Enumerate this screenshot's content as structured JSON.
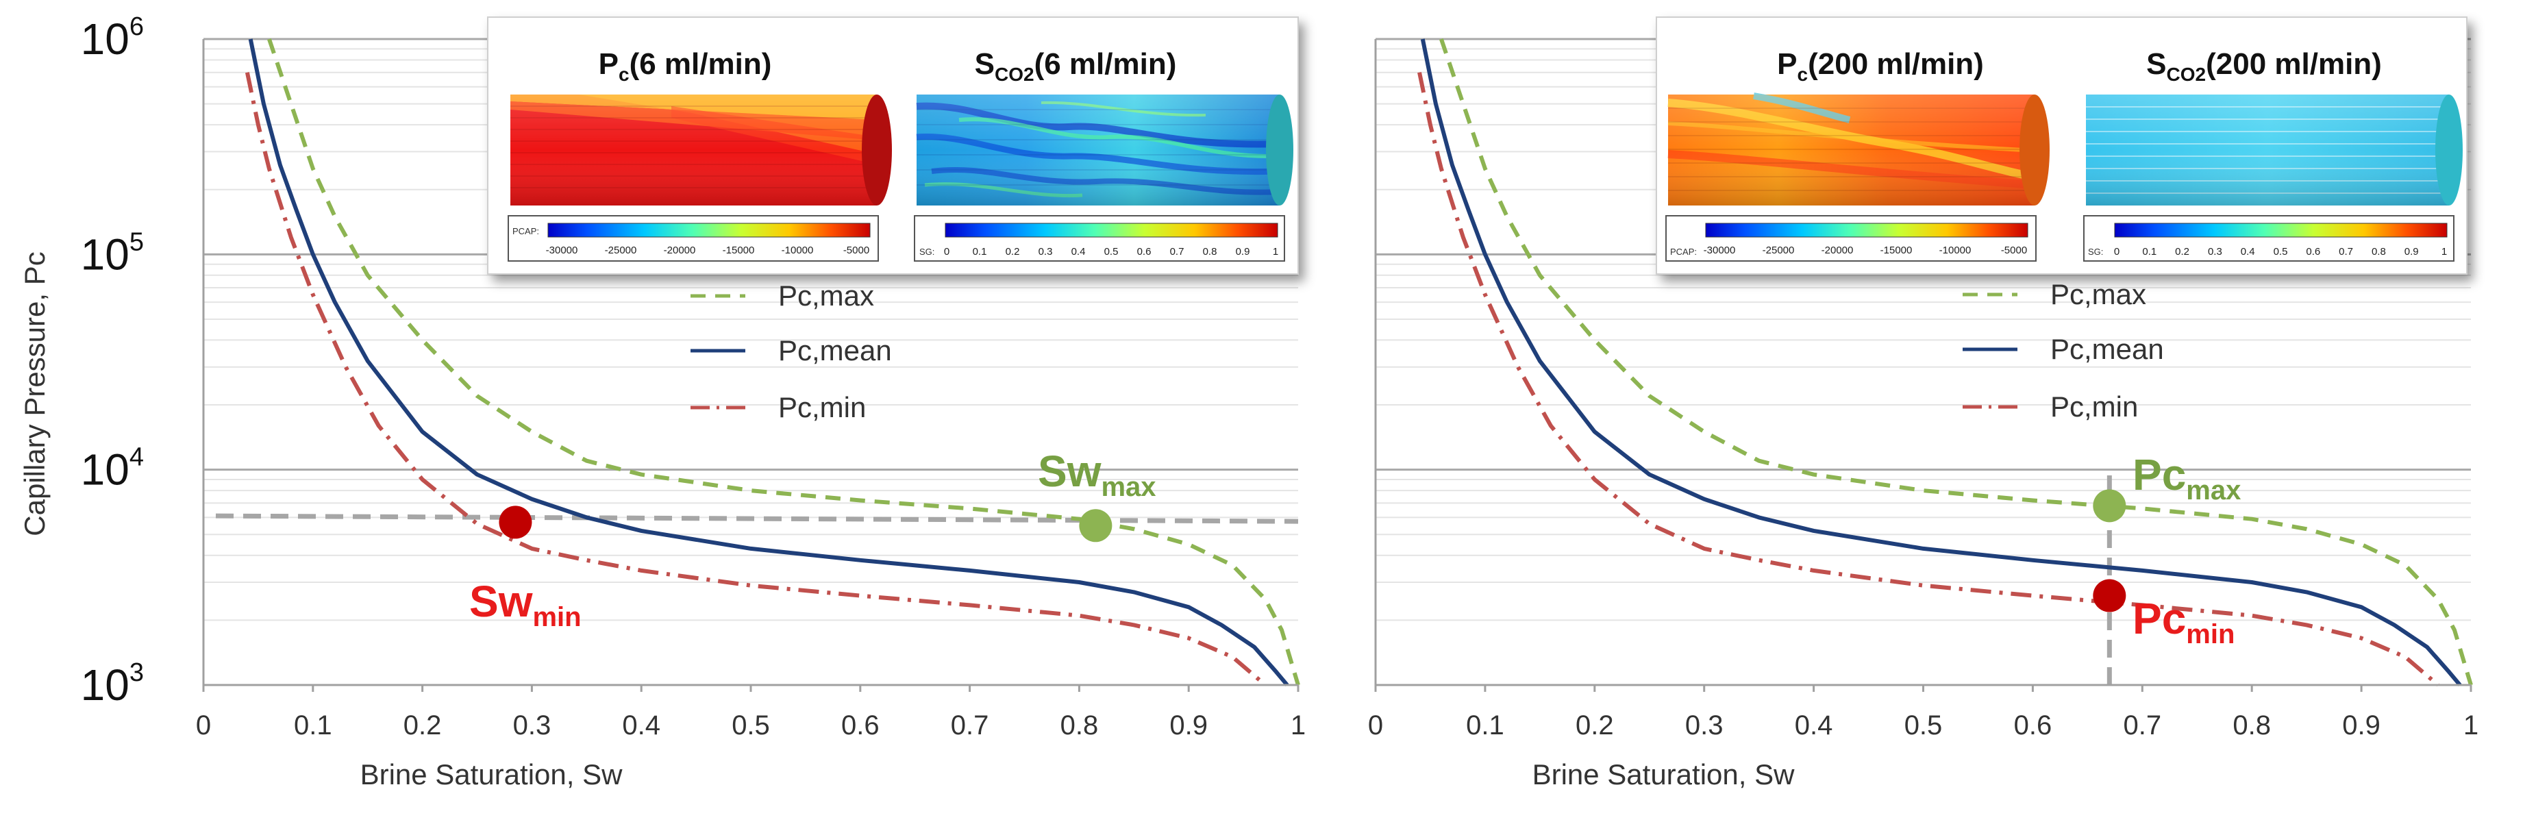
{
  "figure": {
    "description": "Capillary pressure vs brine saturation, two panels"
  },
  "chart_data": [
    {
      "type": "line",
      "panel": "left",
      "xlabel": "Brine Saturation,  Sw",
      "ylabel": "Capillary Pressure, Pc",
      "xlim": [
        0,
        1
      ],
      "ylim": [
        1000,
        1000000
      ],
      "yscale": "log",
      "x_ticks": [
        "0",
        "0.1",
        "0.2",
        "0.3",
        "0.4",
        "0.5",
        "0.6",
        "0.7",
        "0.8",
        "0.9",
        "1"
      ],
      "y_ticks": [
        {
          "base": "10",
          "exp": "3",
          "value": 1000
        },
        {
          "base": "10",
          "exp": "4",
          "value": 10000
        },
        {
          "base": "10",
          "exp": "5",
          "value": 100000
        },
        {
          "base": "10",
          "exp": "6",
          "value": 1000000
        }
      ],
      "legend_position": "center-right",
      "series": [
        {
          "name": "Pc,max",
          "style": "dashed",
          "color": "#8db452",
          "x": [
            0.06,
            0.08,
            0.1,
            0.12,
            0.15,
            0.2,
            0.25,
            0.3,
            0.35,
            0.4,
            0.5,
            0.6,
            0.7,
            0.8,
            0.85,
            0.9,
            0.94,
            0.97,
            0.985,
            1.0
          ],
          "y": [
            1000000,
            500000,
            250000,
            150000,
            80000,
            40000,
            22000,
            15000,
            11000,
            9500,
            8000,
            7200,
            6600,
            5900,
            5300,
            4500,
            3600,
            2500,
            1800,
            1000
          ]
        },
        {
          "name": "Pc,mean",
          "style": "solid",
          "color": "#1f3f7a",
          "x": [
            0.043,
            0.055,
            0.07,
            0.085,
            0.1,
            0.12,
            0.15,
            0.2,
            0.25,
            0.3,
            0.35,
            0.4,
            0.5,
            0.6,
            0.7,
            0.8,
            0.85,
            0.9,
            0.93,
            0.96,
            0.98,
            0.99
          ],
          "y": [
            1000000,
            500000,
            260000,
            160000,
            100000,
            60000,
            32000,
            15000,
            9500,
            7300,
            6000,
            5200,
            4300,
            3800,
            3400,
            3000,
            2700,
            2300,
            1900,
            1500,
            1150,
            1000
          ]
        },
        {
          "name": "Pc,min",
          "style": "dashdot",
          "color": "#c0504d",
          "x": [
            0.04,
            0.05,
            0.06,
            0.08,
            0.1,
            0.13,
            0.16,
            0.2,
            0.25,
            0.3,
            0.35,
            0.4,
            0.5,
            0.6,
            0.7,
            0.8,
            0.85,
            0.9,
            0.94,
            0.97
          ],
          "y": [
            700000,
            400000,
            250000,
            120000,
            65000,
            30000,
            16000,
            9000,
            5600,
            4300,
            3800,
            3400,
            2900,
            2600,
            2350,
            2100,
            1900,
            1650,
            1350,
            1000
          ]
        }
      ],
      "reference_lines": [
        {
          "type": "horizontal",
          "y": 6100,
          "color": "#a6a6a6",
          "style": "dashed"
        }
      ],
      "markers": [
        {
          "label": "Sw",
          "sub": "min",
          "x": 0.285,
          "y": 5700,
          "color": "#c00000",
          "text_color": "#e81c1c"
        },
        {
          "label": "Sw",
          "sub": "max",
          "x": 0.815,
          "y": 5500,
          "color": "#8db452",
          "text_color": "#77a043"
        }
      ],
      "insets": [
        {
          "title": "P",
          "title_sub": "c",
          "title_rest": "(6 ml/min)",
          "variable": "PCAP:",
          "ticks": [
            "-30000",
            "-25000",
            "-20000",
            "-15000",
            "-10000",
            "-5000"
          ]
        },
        {
          "title": "S",
          "title_sub": "CO2",
          "title_rest": "(6 ml/min)",
          "variable": "SG:",
          "ticks": [
            "0",
            "0.1",
            "0.2",
            "0.3",
            "0.4",
            "0.5",
            "0.6",
            "0.7",
            "0.8",
            "0.9",
            "1"
          ]
        }
      ]
    },
    {
      "type": "line",
      "panel": "right",
      "xlabel": "Brine Saturation,  Sw",
      "ylabel": "",
      "xlim": [
        0,
        1
      ],
      "ylim": [
        1000,
        1000000
      ],
      "yscale": "log",
      "x_ticks": [
        "0",
        "0.1",
        "0.2",
        "0.3",
        "0.4",
        "0.5",
        "0.6",
        "0.7",
        "0.8",
        "0.9",
        "1"
      ],
      "legend_position": "center-right",
      "series": [
        {
          "name": "Pc,max",
          "style": "dashed",
          "color": "#8db452",
          "x": [
            0.06,
            0.08,
            0.1,
            0.12,
            0.15,
            0.2,
            0.25,
            0.3,
            0.35,
            0.4,
            0.5,
            0.6,
            0.7,
            0.8,
            0.85,
            0.9,
            0.94,
            0.97,
            0.985,
            1.0
          ],
          "y": [
            1000000,
            500000,
            250000,
            150000,
            80000,
            40000,
            22000,
            15000,
            11000,
            9500,
            8000,
            7200,
            6600,
            5900,
            5300,
            4500,
            3600,
            2500,
            1800,
            1000
          ]
        },
        {
          "name": "Pc,mean",
          "style": "solid",
          "color": "#1f3f7a",
          "x": [
            0.043,
            0.055,
            0.07,
            0.085,
            0.1,
            0.12,
            0.15,
            0.2,
            0.25,
            0.3,
            0.35,
            0.4,
            0.5,
            0.6,
            0.7,
            0.8,
            0.85,
            0.9,
            0.93,
            0.96,
            0.98,
            0.99
          ],
          "y": [
            1000000,
            500000,
            260000,
            160000,
            100000,
            60000,
            32000,
            15000,
            9500,
            7300,
            6000,
            5200,
            4300,
            3800,
            3400,
            3000,
            2700,
            2300,
            1900,
            1500,
            1150,
            1000
          ]
        },
        {
          "name": "Pc,min",
          "style": "dashdot",
          "color": "#c0504d",
          "x": [
            0.04,
            0.05,
            0.06,
            0.08,
            0.1,
            0.13,
            0.16,
            0.2,
            0.25,
            0.3,
            0.35,
            0.4,
            0.5,
            0.6,
            0.7,
            0.8,
            0.85,
            0.9,
            0.94,
            0.97
          ],
          "y": [
            700000,
            400000,
            250000,
            120000,
            65000,
            30000,
            16000,
            9000,
            5600,
            4300,
            3800,
            3400,
            2900,
            2600,
            2350,
            2100,
            1900,
            1650,
            1350,
            1000
          ]
        }
      ],
      "reference_lines": [
        {
          "type": "vertical",
          "x": 0.67,
          "y_from": 1000,
          "y_to": 10000,
          "color": "#a6a6a6",
          "style": "dashed"
        }
      ],
      "markers": [
        {
          "label": "Pc",
          "sub": "max",
          "x": 0.67,
          "y": 6800,
          "color": "#8db452",
          "text_color": "#77a043"
        },
        {
          "label": "Pc",
          "sub": "min",
          "x": 0.67,
          "y": 2600,
          "color": "#c00000",
          "text_color": "#e81c1c"
        }
      ],
      "insets": [
        {
          "title": "P",
          "title_sub": "c",
          "title_rest": "(200 ml/min)",
          "variable": "PCAP:",
          "ticks": [
            "-30000",
            "-25000",
            "-20000",
            "-15000",
            "-10000",
            "-5000"
          ]
        },
        {
          "title": "S",
          "title_sub": "CO2",
          "title_rest": "(200 ml/min)",
          "variable": "SG:",
          "ticks": [
            "0",
            "0.1",
            "0.2",
            "0.3",
            "0.4",
            "0.5",
            "0.6",
            "0.7",
            "0.8",
            "0.9",
            "1"
          ]
        }
      ]
    }
  ]
}
